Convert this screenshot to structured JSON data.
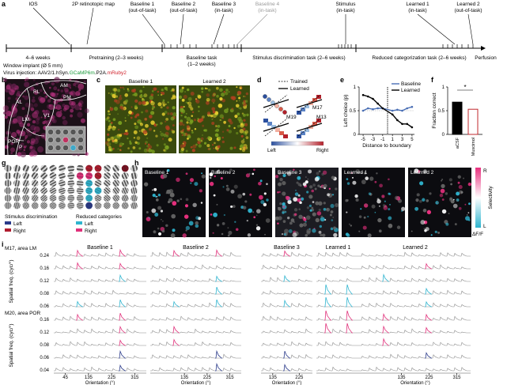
{
  "panel_labels": [
    "a",
    "b",
    "c",
    "d",
    "e",
    "f",
    "g",
    "h",
    "i"
  ],
  "timeline": {
    "events": [
      [
        "IOS"
      ],
      [
        "2P retinotopic map"
      ],
      [
        "Baseline 1",
        "(out-of-task)"
      ],
      [
        "Baseline 2",
        "(out-of-task)"
      ],
      [
        "Baseline 3",
        "(in-task)"
      ],
      [
        "Baseline 4",
        "(in-task)"
      ],
      [
        "Stimulus",
        "(in-task)"
      ],
      [
        "Learned 1",
        "(in-task)"
      ],
      [
        "Learned 2",
        "(out-of-task)"
      ]
    ],
    "phases": [
      [
        "4–6 weeks"
      ],
      [
        "Pretraining (2–3 weeks)"
      ],
      [
        "Baseline task",
        "(1–2 weeks)"
      ],
      [
        "Stimulus discrimination task (2–6 weeks)"
      ],
      [
        "Reduced categorization task (2–6 weeks)"
      ]
    ],
    "end": "Perfusion",
    "window": "Window implant (Ø 5 mm)",
    "virus": [
      "Virus injection: AAV2/1.hSyn.",
      "GCaMP6m",
      ".P2A.",
      "mRuby2"
    ]
  },
  "areas": [
    "AL",
    "RL",
    "AM",
    "PM",
    "LM",
    "V1",
    "POR",
    "P"
  ],
  "fov_titles": [
    "Baseline 1",
    "Learned 2"
  ],
  "boundaries": {
    "legend": [
      "Trained",
      "Learned"
    ],
    "mice": [
      "M17",
      "M19",
      "M13"
    ],
    "colorbar": [
      "Left",
      "Right"
    ]
  },
  "chart_data": [
    {
      "type": "line",
      "xlabel": "Distance to boundary",
      "ylabel": "Left choice (p)",
      "x": [
        -5,
        -4,
        -3,
        -2,
        -1,
        1,
        2,
        3,
        4,
        5
      ],
      "series": [
        {
          "name": "Baseline",
          "color": "#4a6fb5",
          "values": [
            0.5,
            0.55,
            0.53,
            0.55,
            0.55,
            0.5,
            0.52,
            0.5,
            0.55,
            0.58
          ]
        },
        {
          "name": "Learned",
          "color": "#000000",
          "values": [
            0.83,
            0.8,
            0.75,
            0.65,
            0.55,
            0.42,
            0.3,
            0.22,
            0.22,
            0.15
          ]
        }
      ],
      "xlim": [
        -5.5,
        5.5
      ],
      "ylim": [
        0,
        1
      ],
      "xticks": [
        -5,
        -3,
        -1,
        1,
        3,
        5
      ],
      "yticks": [
        0,
        0.5,
        1
      ]
    },
    {
      "type": "bar",
      "ylabel": "Fraction correct",
      "categories": [
        "aCSF",
        "Muscimol"
      ],
      "values": [
        0.68,
        0.53
      ],
      "colors": [
        "#000000",
        "#c0282d"
      ],
      "ylim": [
        0,
        1
      ],
      "yticks": [
        0,
        0.5,
        1
      ],
      "annotation": "*"
    }
  ],
  "gratings": {
    "groups": [
      {
        "title": "Stimulus discrimination",
        "items": [
          "Left",
          "Right"
        ]
      },
      {
        "title": "Reduced categories",
        "items": [
          "Left",
          "Right"
        ]
      }
    ]
  },
  "selectivity": {
    "titles": [
      "Baseline 1",
      "Baseline 2",
      "Baseline 3",
      "Learned 1",
      "Learned 2"
    ],
    "colorbar": {
      "top": "R",
      "bottom": "L",
      "label": "Selectivity",
      "unit": "ΔF/F"
    }
  },
  "traces": {
    "mice": [
      "M17, area LM",
      "M20, area POR"
    ],
    "ylabel": "Spatial freq. (cyc/°)",
    "yticks": [
      [
        0.24,
        0.16,
        0.12,
        0.08,
        0.06
      ],
      [
        0.16,
        0.12,
        0.08,
        0.06,
        0.04
      ]
    ],
    "columns": [
      {
        "title": "Baseline 1",
        "xticks": [
          45,
          135,
          225,
          315
        ]
      },
      {
        "title": "Baseline 2",
        "xticks": [
          135,
          225,
          315
        ]
      },
      {
        "title": "Baseline 3",
        "xticks": [
          135,
          225
        ]
      },
      {
        "title": "Learned 1"
      },
      {
        "title": "Learned 2",
        "xticks": [
          135,
          225,
          315
        ]
      }
    ],
    "xlabel": "Orientation (°)"
  }
}
